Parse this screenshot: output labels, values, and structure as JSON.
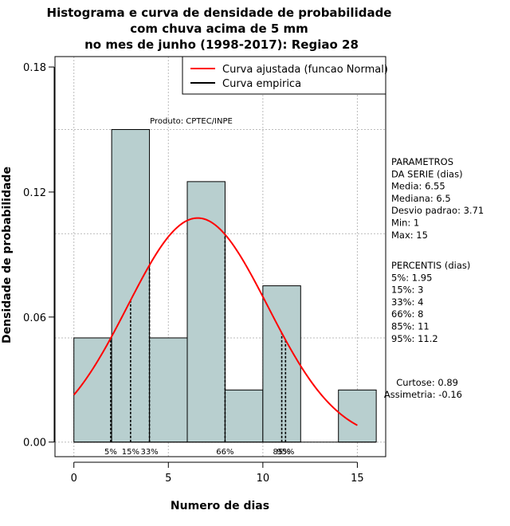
{
  "chart_data": {
    "type": "histogram",
    "title_lines": [
      "Histograma e curva de densidade de probabilidade",
      "com chuva acima de 5 mm",
      "no mes de junho (1998-2017): Regiao 28"
    ],
    "xlabel": "Numero de dias",
    "ylabel": "Densidade de probabilidade",
    "xlim": [
      -1,
      16.5
    ],
    "ylim": [
      -0.007,
      0.185
    ],
    "x_ticks": [
      0,
      5,
      10,
      15
    ],
    "y_ticks": [
      0.0,
      0.06,
      0.12,
      0.18
    ],
    "y_tick_labels": [
      "0.00",
      "0.06",
      "0.12",
      "0.18"
    ],
    "grid_x": [
      0,
      5,
      10,
      15
    ],
    "grid_y": [
      0,
      0.05,
      0.1,
      0.15
    ],
    "bar_color": "#b8cfcf",
    "curve_color": "#ff0000",
    "bins": [
      {
        "start": 0,
        "end": 2,
        "density": 0.05
      },
      {
        "start": 2,
        "end": 4,
        "density": 0.15
      },
      {
        "start": 4,
        "end": 6,
        "density": 0.05
      },
      {
        "start": 6,
        "end": 8,
        "density": 0.125
      },
      {
        "start": 8,
        "end": 10,
        "density": 0.025
      },
      {
        "start": 10,
        "end": 12,
        "density": 0.075
      },
      {
        "start": 12,
        "end": 14,
        "density": 0.0
      },
      {
        "start": 14,
        "end": 16,
        "density": 0.025
      }
    ],
    "normal_fit": {
      "mean": 6.55,
      "sd": 3.71,
      "x_from": 0,
      "x_to": 15
    },
    "percentile_lines": [
      {
        "label": "5%",
        "x": 1.95
      },
      {
        "label": "15%",
        "x": 3
      },
      {
        "label": "33%",
        "x": 4
      },
      {
        "label": "66%",
        "x": 8
      },
      {
        "label": "85%",
        "x": 11
      },
      {
        "label": "95%",
        "x": 11.2
      }
    ],
    "legend": {
      "position": "top-right",
      "entries": [
        {
          "label": "Curva ajustada (funcao Normal)",
          "color": "#ff0000"
        },
        {
          "label": "Curva empirica",
          "color": "#000000"
        }
      ]
    },
    "annotation": "Produto: CPTEC/INPE",
    "parameters_block": [
      "PARAMETROS",
      "DA SERIE (dias)",
      "  Media: 6.55",
      "  Mediana: 6.5",
      "  Desvio padrao: 3.71",
      "  Min: 1",
      "  Max: 15"
    ],
    "percentis_block": [
      "PERCENTIS (dias)",
      "  5%: 1.95",
      "  15%: 3",
      "  33%: 4",
      "  66%: 8",
      "  85%: 11",
      "  95%: 11.2"
    ],
    "moments_block": [
      "Curtose: 0.89",
      "Assimetria: -0.16"
    ]
  }
}
